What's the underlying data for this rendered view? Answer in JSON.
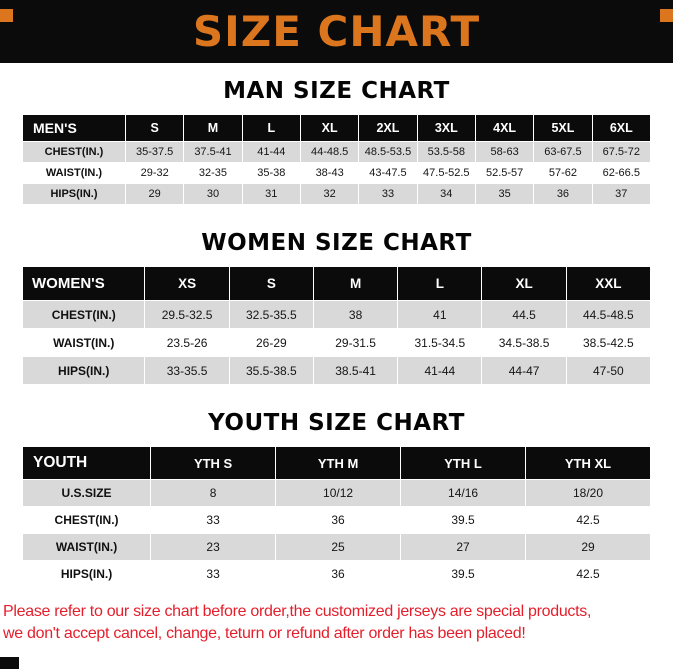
{
  "banner": {
    "title": "SIZE CHART"
  },
  "chart_data": [
    {
      "type": "table",
      "id": "mens",
      "title": "MAN SIZE CHART",
      "columns": [
        "MEN'S",
        "S",
        "M",
        "L",
        "XL",
        "2XL",
        "3XL",
        "4XL",
        "5XL",
        "6XL"
      ],
      "rows": [
        {
          "label": "CHEST(IN.)",
          "values": [
            "35-37.5",
            "37.5-41",
            "41-44",
            "44-48.5",
            "48.5-53.5",
            "53.5-58",
            "58-63",
            "63-67.5",
            "67.5-72"
          ]
        },
        {
          "label": "WAIST(IN.)",
          "values": [
            "29-32",
            "32-35",
            "35-38",
            "38-43",
            "43-47.5",
            "47.5-52.5",
            "52.5-57",
            "57-62",
            "62-66.5"
          ]
        },
        {
          "label": "HIPS(IN.)",
          "values": [
            "29",
            "30",
            "31",
            "32",
            "33",
            "34",
            "35",
            "36",
            "37"
          ]
        }
      ]
    },
    {
      "type": "table",
      "id": "womens",
      "title": "WOMEN SIZE CHART",
      "columns": [
        "WOMEN'S",
        "XS",
        "S",
        "M",
        "L",
        "XL",
        "XXL"
      ],
      "rows": [
        {
          "label": "CHEST(IN.)",
          "values": [
            "29.5-32.5",
            "32.5-35.5",
            "38",
            "41",
            "44.5",
            "44.5-48.5"
          ]
        },
        {
          "label": "WAIST(IN.)",
          "values": [
            "23.5-26",
            "26-29",
            "29-31.5",
            "31.5-34.5",
            "34.5-38.5",
            "38.5-42.5"
          ]
        },
        {
          "label": "HIPS(IN.)",
          "values": [
            "33-35.5",
            "35.5-38.5",
            "38.5-41",
            "41-44",
            "44-47",
            "47-50"
          ]
        }
      ]
    },
    {
      "type": "table",
      "id": "youth",
      "title": "YOUTH SIZE CHART",
      "columns": [
        "YOUTH",
        "YTH S",
        "YTH M",
        "YTH L",
        "YTH XL"
      ],
      "rows": [
        {
          "label": "U.S.SIZE",
          "values": [
            "8",
            "10/12",
            "14/16",
            "18/20"
          ]
        },
        {
          "label": "CHEST(IN.)",
          "values": [
            "33",
            "36",
            "39.5",
            "42.5"
          ]
        },
        {
          "label": "WAIST(IN.)",
          "values": [
            "23",
            "25",
            "27",
            "29"
          ]
        },
        {
          "label": "HIPS(IN.)",
          "values": [
            "33",
            "36",
            "39.5",
            "42.5"
          ]
        }
      ]
    }
  ],
  "footer": {
    "line1": "Please refer to our size chart before order,the customized jerseys are special products,",
    "line2": "we don't accept cancel, change, teturn or refund after order has been placed!"
  },
  "colors": {
    "accent_orange": "#dc761e",
    "banner_black": "#0b0b0b",
    "row_gray": "#d9d9d9",
    "warning_red": "#e51e2b"
  }
}
